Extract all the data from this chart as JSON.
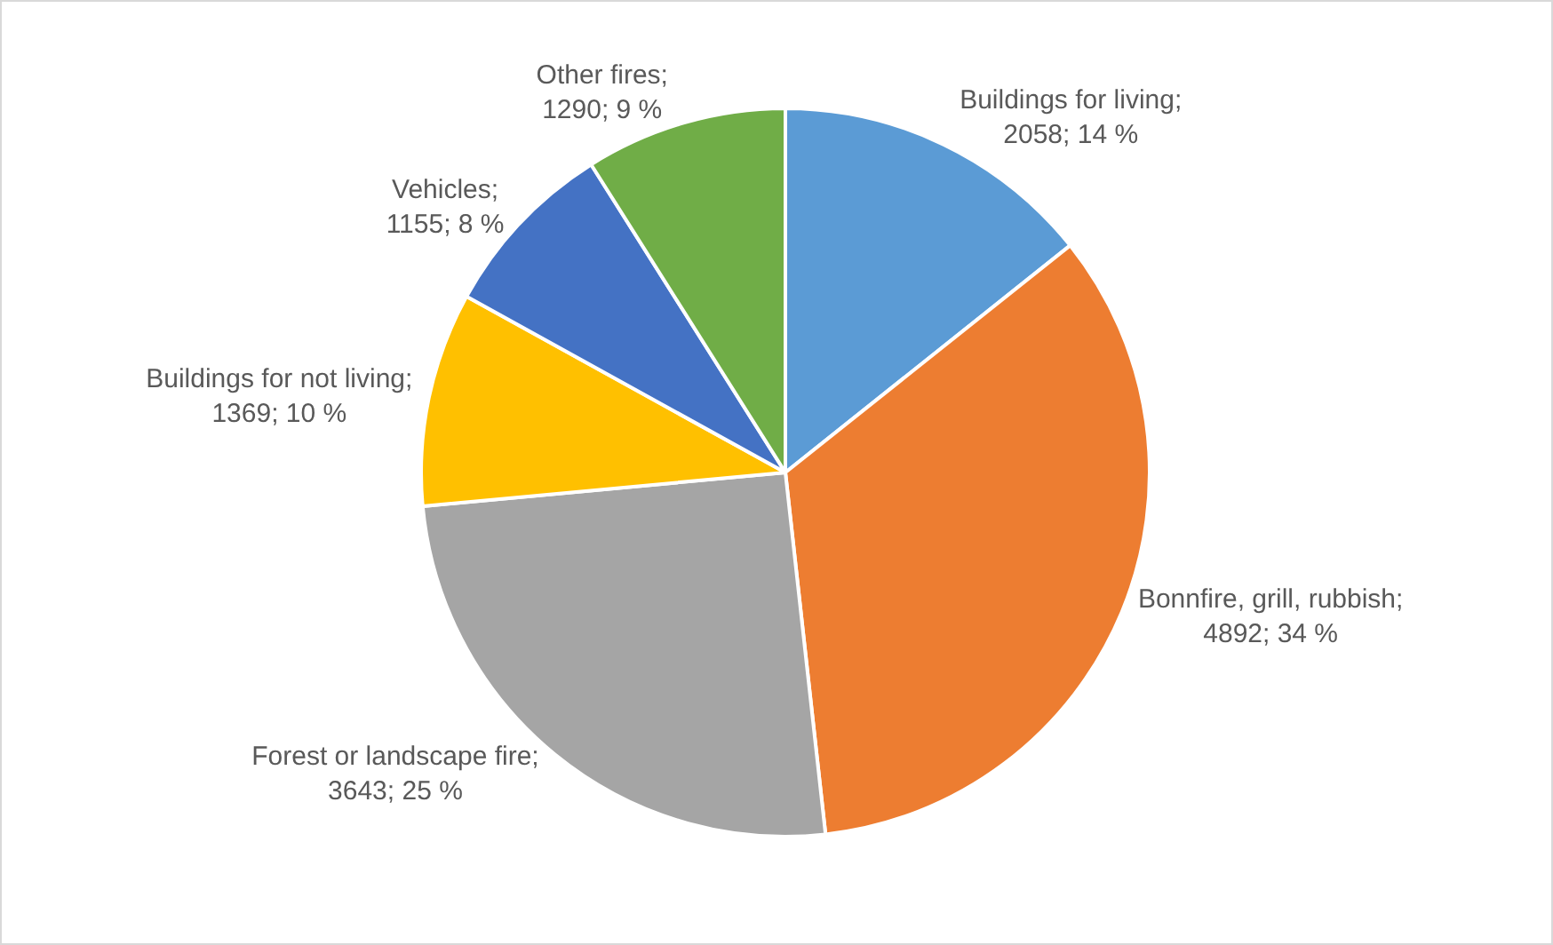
{
  "chart_data": {
    "type": "pie",
    "categories": [
      "Buildings for living",
      "Bonnfire, grill, rubbish",
      "Forest or landscape fire",
      "Buildings for not living",
      "Vehicles",
      "Other fires"
    ],
    "values": [
      2058,
      4892,
      3643,
      1369,
      1155,
      1290
    ],
    "colors": [
      "#5b9bd5",
      "#ed7d31",
      "#a5a5a5",
      "#ffc000",
      "#4472c4",
      "#70ad47"
    ],
    "value_labels": [
      "; 2058; 14 %",
      "; 4892; 34 %",
      "; 3643; 25 %",
      "; 1369; 10 %",
      "; 1155; 8 %",
      "; 1290; 9 %"
    ],
    "legend": false
  }
}
